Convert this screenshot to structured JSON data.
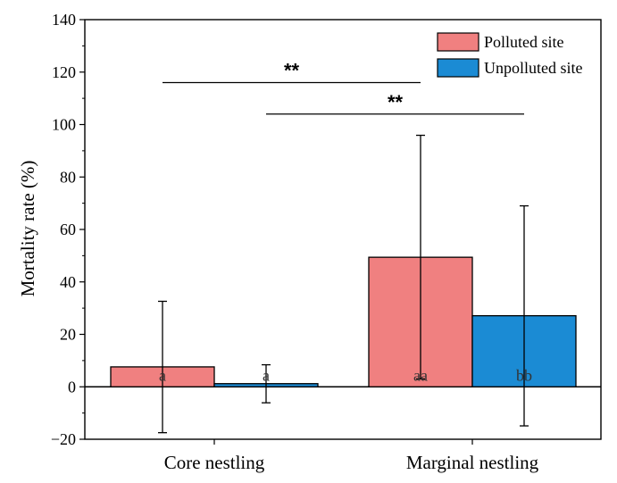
{
  "chart_data": {
    "type": "bar",
    "title": "",
    "xlabel": "",
    "ylabel": "Mortality rate (%)",
    "ylim": [
      -20,
      140
    ],
    "yticks": [
      -20,
      0,
      20,
      40,
      60,
      80,
      100,
      120,
      140
    ],
    "ytick_labels": [
      "−20",
      "0",
      "20",
      "40",
      "60",
      "80",
      "100",
      "120",
      "140"
    ],
    "categories": [
      "Core nestling",
      "Marginal nestling"
    ],
    "legend_position": "top-right",
    "series": [
      {
        "name": "Polluted site",
        "color": "#f08080",
        "values": [
          7.6,
          49.4
        ],
        "err_low": [
          -17.5,
          3.0
        ],
        "err_high": [
          32.6,
          95.9
        ],
        "labels": [
          "a",
          "aa"
        ]
      },
      {
        "name": "Unpolluted site",
        "color": "#1b8bd4",
        "values": [
          1.2,
          27.1
        ],
        "err_low": [
          -6.1,
          -14.9
        ],
        "err_high": [
          8.4,
          69.0
        ],
        "labels": [
          "a",
          "bb"
        ]
      }
    ],
    "significance": [
      {
        "label": "**",
        "from": [
          0,
          0
        ],
        "to": [
          1,
          0
        ],
        "y": 116
      },
      {
        "label": "**",
        "from": [
          0,
          1
        ],
        "to": [
          1,
          1
        ],
        "y": 104
      }
    ]
  }
}
